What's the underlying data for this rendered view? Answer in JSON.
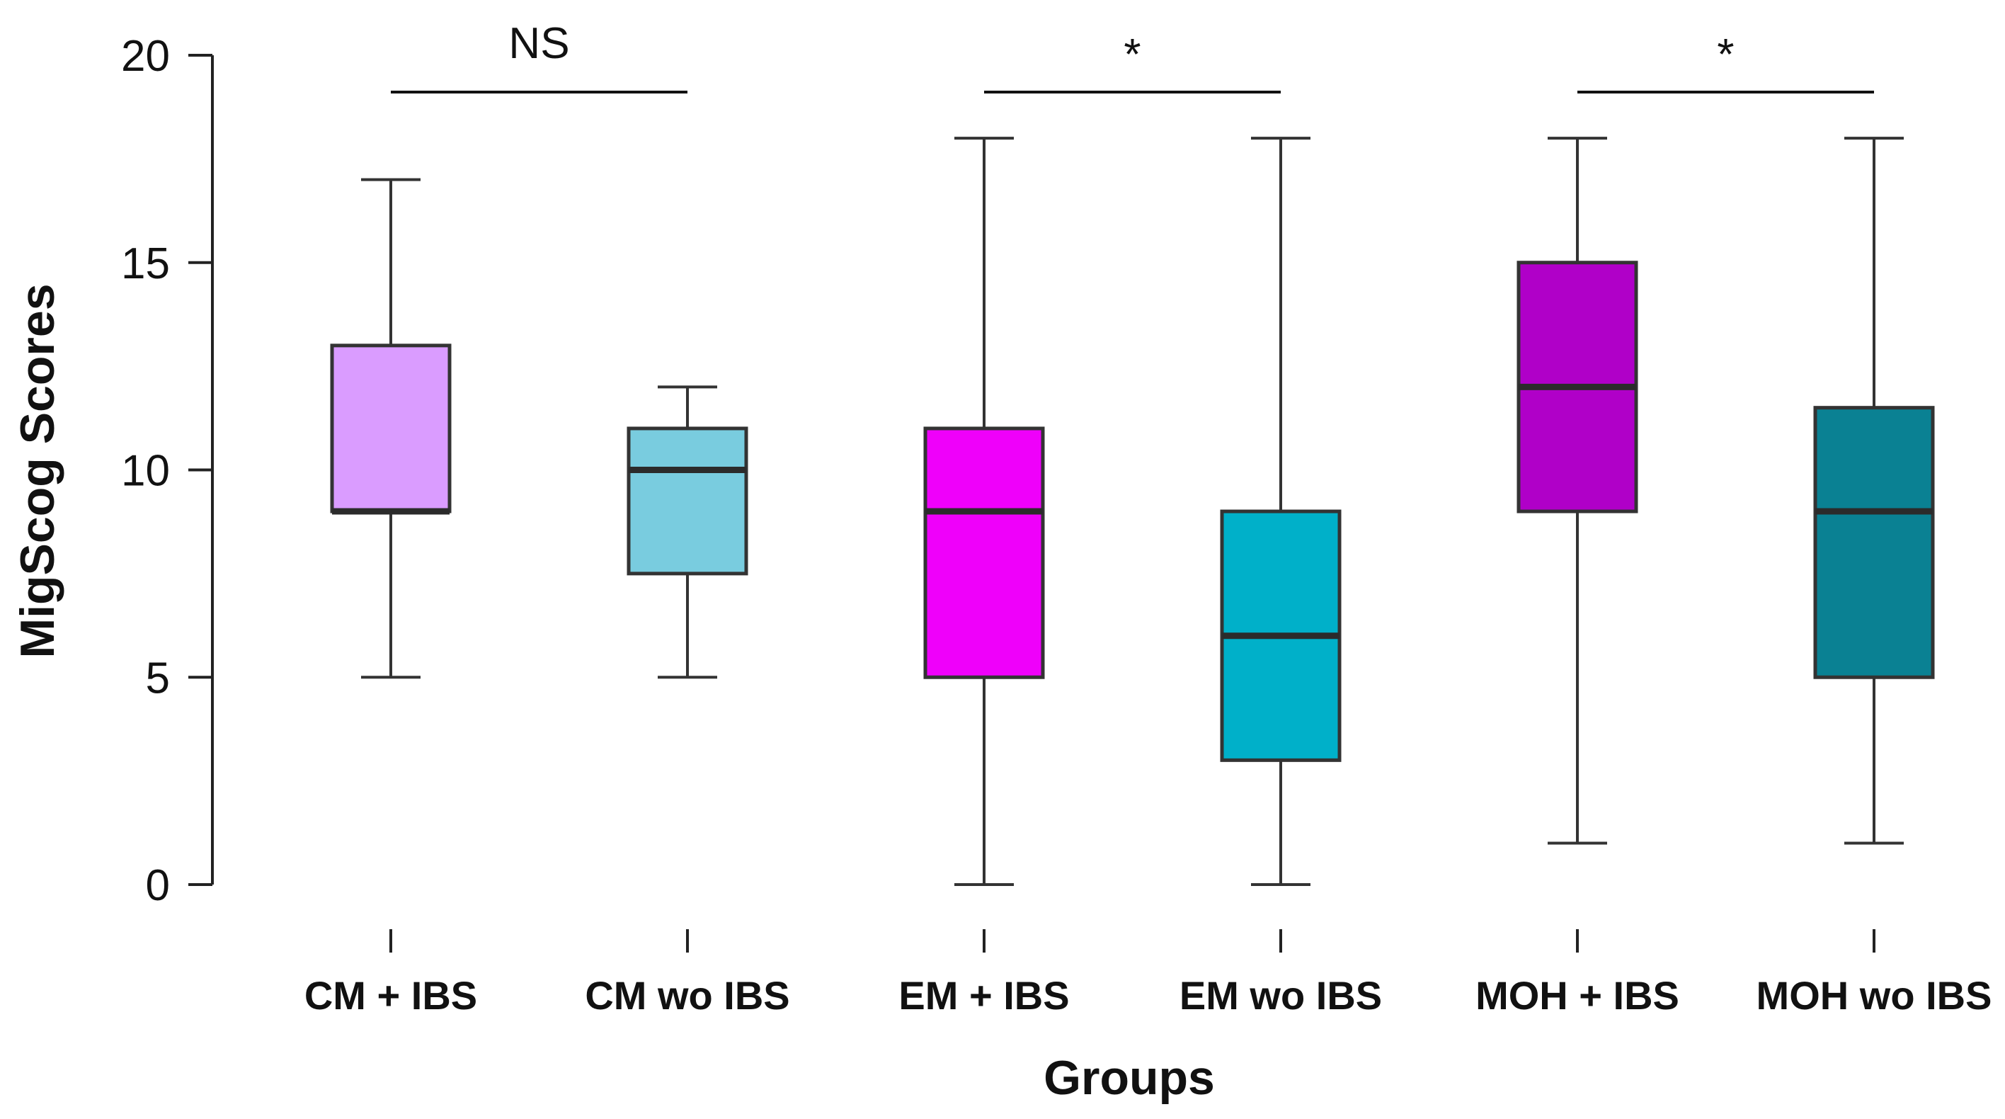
{
  "chart_data": {
    "type": "box",
    "xlabel": "Groups",
    "ylabel": "MigScog Scores",
    "ylim": [
      0,
      20
    ],
    "yticks": [
      0,
      5,
      10,
      15,
      20
    ],
    "grid": false,
    "categories": [
      "CM + IBS",
      "CM wo IBS",
      "EM + IBS",
      "EM wo IBS",
      "MOH + IBS",
      "MOH wo IBS"
    ],
    "boxes": [
      {
        "category": "CM + IBS",
        "min": 5,
        "q1": 9,
        "median": 9,
        "q3": 13,
        "max": 17,
        "color": "#da9cff"
      },
      {
        "category": "CM wo IBS",
        "min": 5,
        "q1": 7.5,
        "median": 10,
        "q3": 11,
        "max": 12,
        "color": "#79ccdf"
      },
      {
        "category": "EM + IBS",
        "min": 0,
        "q1": 5,
        "median": 9,
        "q3": 11,
        "max": 18,
        "color": "#ef00fa"
      },
      {
        "category": "EM wo IBS",
        "min": 0,
        "q1": 3,
        "median": 6,
        "q3": 9,
        "max": 18,
        "color": "#00b0c9"
      },
      {
        "category": "MOH + IBS",
        "min": 1,
        "q1": 9,
        "median": 12,
        "q3": 15,
        "max": 18,
        "color": "#b000c8"
      },
      {
        "category": "MOH wo IBS",
        "min": 1,
        "q1": 5,
        "median": 9,
        "q3": 11.5,
        "max": 18,
        "color": "#0a8193"
      }
    ],
    "significance": [
      {
        "from": 0,
        "to": 1,
        "label": "NS"
      },
      {
        "from": 2,
        "to": 3,
        "label": "*"
      },
      {
        "from": 4,
        "to": 5,
        "label": "*"
      }
    ]
  }
}
